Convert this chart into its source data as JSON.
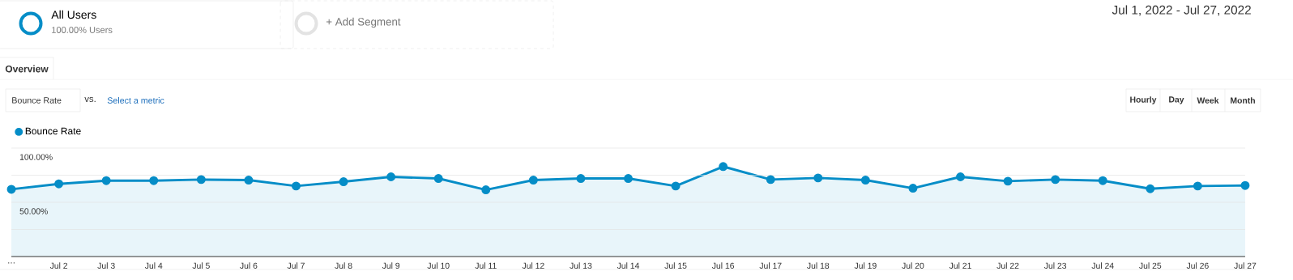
{
  "chart_data": {
    "type": "area",
    "categories": [
      "…",
      "Jul 2",
      "Jul 3",
      "Jul 4",
      "Jul 5",
      "Jul 6",
      "Jul 7",
      "Jul 8",
      "Jul 9",
      "Jul 10",
      "Jul 11",
      "Jul 12",
      "Jul 13",
      "Jul 14",
      "Jul 15",
      "Jul 16",
      "Jul 17",
      "Jul 18",
      "Jul 19",
      "Jul 20",
      "Jul 21",
      "Jul 22",
      "Jul 23",
      "Jul 24",
      "Jul 25",
      "Jul 26",
      "Jul 27"
    ],
    "series": [
      {
        "name": "Bounce Rate",
        "color": "#058dc7",
        "values": [
          62,
          67,
          70,
          70,
          71,
          70.5,
          65,
          69,
          73.5,
          72,
          61.5,
          70.5,
          72,
          72,
          65,
          83,
          71,
          72.5,
          70.5,
          63,
          73.5,
          69.5,
          71,
          70,
          62.5,
          65,
          65.5
        ]
      }
    ],
    "ylim": [
      0,
      100
    ],
    "yticks": [
      {
        "value": 25,
        "label": null
      },
      {
        "value": 50,
        "label": "50.00%"
      },
      {
        "value": 75,
        "label": null
      },
      {
        "value": 100,
        "label": "100.00%"
      }
    ],
    "grid": "y",
    "legend": "top left",
    "marker": "circle",
    "annotations": [
      "All Users",
      "100.00% Users",
      "+ Add Segment",
      "Overview",
      "Bounce Rate",
      "vs.",
      "Select a metric",
      "Hourly",
      "Day",
      "Week",
      "Month",
      "Jul 1, 2022 - Jul 27, 2022"
    ]
  }
}
